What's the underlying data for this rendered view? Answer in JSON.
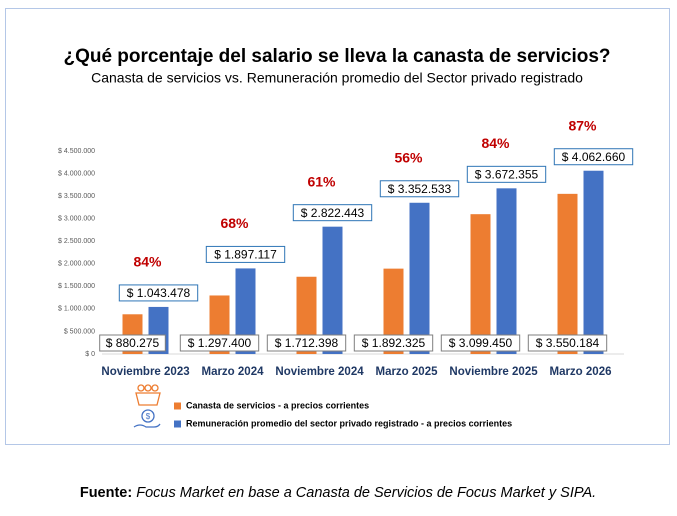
{
  "chart_data": {
    "type": "bar",
    "title": "¿Qué porcentaje del salario se lleva la canasta de servicios?",
    "subtitle": "Canasta de servicios vs. Remuneración promedio del Sector privado registrado",
    "categories": [
      "Noviembre 2023",
      "Marzo 2024",
      "Noviembre 2024",
      "Marzo 2025",
      "Noviembre 2025",
      "Marzo 2026"
    ],
    "series": [
      {
        "name": "Canasta de servicios - a precios corrientes",
        "color": "#ed7d31",
        "values": [
          880275,
          1297400,
          1712398,
          1892325,
          3099450,
          3550184
        ],
        "value_labels": [
          "$ 880.275",
          "$ 1.297.400",
          "$ 1.712.398",
          "$ 1.892.325",
          "$ 3.099.450",
          "$ 3.550.184"
        ]
      },
      {
        "name": "Remuneración promedio del sector privado registrado - a precios corrientes",
        "color": "#4472c4",
        "values": [
          1043478,
          1897117,
          2822443,
          3352533,
          3672355,
          4062660
        ],
        "value_labels": [
          "$ 1.043.478",
          "$ 1.897.117",
          "$ 2.822.443",
          "$ 3.352.533",
          "$ 3.672.355",
          "$ 4.062.660"
        ]
      }
    ],
    "annotations": [
      "84%",
      "68%",
      "61%",
      "56%",
      "84%",
      "87%"
    ],
    "ylim": [
      0,
      4500000
    ],
    "yticks": [
      {
        "value": 0,
        "label": "$ 0"
      },
      {
        "value": 500000,
        "label": "$ 500.000"
      },
      {
        "value": 1000000,
        "label": "$ 1.000.000"
      },
      {
        "value": 1500000,
        "label": "$ 1.500.000"
      },
      {
        "value": 2000000,
        "label": "$ 2.000.000"
      },
      {
        "value": 2500000,
        "label": "$ 2.500.000"
      },
      {
        "value": 3000000,
        "label": "$ 3.000.000"
      },
      {
        "value": 3500000,
        "label": "$ 3.500.000"
      },
      {
        "value": 4000000,
        "label": "$ 4.000.000"
      },
      {
        "value": 4500000,
        "label": "$ 4.500.000"
      }
    ],
    "grid": false,
    "source_label": "Fuente:",
    "source_text": "Focus Market en base a Canasta de Servicios de Focus Market y SIPA."
  }
}
